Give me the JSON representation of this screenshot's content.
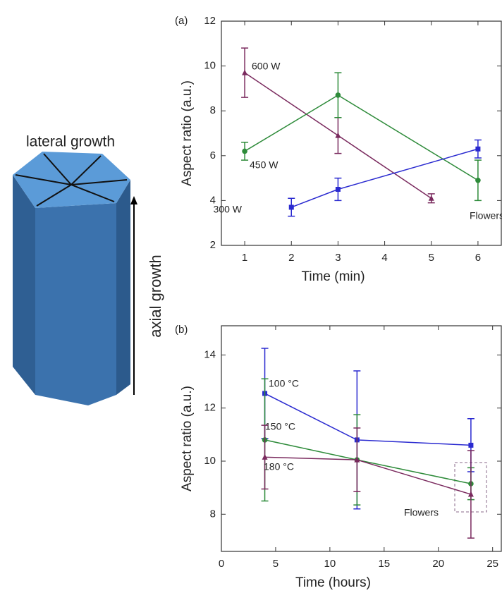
{
  "diagram": {
    "lateral_label": "lateral growth",
    "axial_label": "axial growth"
  },
  "chart_data": [
    {
      "type": "line",
      "panel_label": "(a)",
      "x_label": "Time (min)",
      "y_label": "Aspect ratio (a.u.)",
      "xlim": [
        0.5,
        6.5
      ],
      "xticks": [
        1,
        2,
        3,
        4,
        5,
        6
      ],
      "ylim": [
        2,
        12
      ],
      "yticks": [
        2,
        4,
        6,
        8,
        10,
        12
      ],
      "annotations": [
        "Flowers"
      ],
      "series": [
        {
          "name": "600 W",
          "color": "#7a2a5e",
          "marker": "triangle",
          "x": [
            1,
            3,
            5
          ],
          "values": [
            9.7,
            6.9,
            4.1
          ],
          "errors": [
            1.1,
            0.8,
            0.2
          ]
        },
        {
          "name": "450 W",
          "color": "#2e8b3a",
          "marker": "circle",
          "x": [
            1,
            3,
            6
          ],
          "values": [
            6.2,
            8.7,
            4.9
          ],
          "errors": [
            0.4,
            1.0,
            0.9
          ]
        },
        {
          "name": "300 W",
          "color": "#2a2ad0",
          "marker": "square",
          "x": [
            2,
            3,
            6
          ],
          "values": [
            3.7,
            4.5,
            6.3
          ],
          "errors": [
            0.4,
            0.5,
            0.4
          ]
        }
      ]
    },
    {
      "type": "line",
      "panel_label": "(b)",
      "x_label": "Time (hours)",
      "y_label": "Aspect ratio (a.u.)",
      "xlim": [
        0,
        25.8
      ],
      "xticks": [
        0,
        5,
        10,
        15,
        20,
        25
      ],
      "ylim": [
        6.6,
        15.1
      ],
      "yticks": [
        8,
        10,
        12,
        14
      ],
      "annotations": [
        "Flowers"
      ],
      "series": [
        {
          "name": "100 °C",
          "color": "#2a2ad0",
          "marker": "square",
          "x": [
            4,
            12.5,
            23
          ],
          "values": [
            12.55,
            10.8,
            10.6
          ],
          "errors": [
            1.7,
            2.6,
            1.0
          ]
        },
        {
          "name": "150 °C",
          "color": "#2e8b3a",
          "marker": "circle",
          "x": [
            4,
            12.5,
            23
          ],
          "values": [
            10.8,
            10.05,
            9.15
          ],
          "errors": [
            2.3,
            1.7,
            0.6
          ]
        },
        {
          "name": "180 °C",
          "color": "#7a2a5e",
          "marker": "triangle",
          "x": [
            4,
            12.5,
            23
          ],
          "values": [
            10.15,
            10.05,
            8.75
          ],
          "errors": [
            1.2,
            1.2,
            1.65
          ]
        }
      ]
    }
  ]
}
